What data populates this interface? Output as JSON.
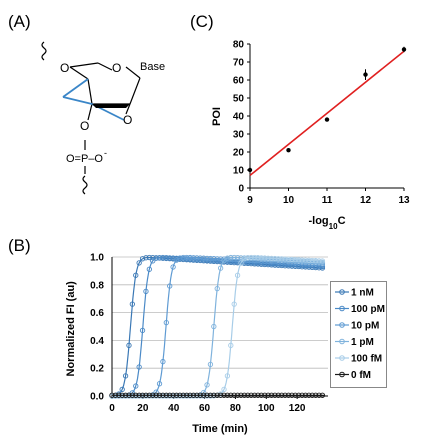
{
  "panels": {
    "a_label": "(A)",
    "b_label": "(B)",
    "c_label": "(C)"
  },
  "structure": {
    "o_top": "O",
    "o_ring": "O",
    "base": "Base",
    "o_right": "O",
    "o_bottom": "O",
    "phosphate": "O=P–O",
    "phosphate_charge": "-"
  },
  "chart_data": [
    {
      "type": "scatter",
      "panel": "C",
      "xlabel_main": "-log",
      "xlabel_sub": "10",
      "xlabel_tail": "C",
      "ylabel": "POI",
      "xlim": [
        9,
        13
      ],
      "ylim": [
        0,
        80
      ],
      "xticks": [
        "9",
        "10",
        "11",
        "12",
        "13"
      ],
      "yticks": [
        "0",
        "10",
        "20",
        "30",
        "40",
        "50",
        "60",
        "70",
        "80"
      ],
      "grid": false,
      "points": [
        {
          "x": 9,
          "y": 10
        },
        {
          "x": 10,
          "y": 21
        },
        {
          "x": 11,
          "y": 38
        },
        {
          "x": 12,
          "y": 63
        },
        {
          "x": 13,
          "y": 77
        }
      ],
      "errors": [
        0.8,
        0.8,
        0.8,
        3,
        1.5
      ],
      "fit_line": {
        "x": [
          9,
          13
        ],
        "y": [
          7,
          76
        ]
      },
      "point_color": "#000000",
      "fit_color": "#e02020"
    },
    {
      "type": "line",
      "panel": "B",
      "xlabel": "Time (min)",
      "ylabel": "Normalized FI (au)",
      "xlim": [
        0,
        140
      ],
      "ylim": [
        0,
        1
      ],
      "xticks": [
        "0",
        "20",
        "40",
        "60",
        "80",
        "100",
        "120"
      ],
      "yticks": [
        "0.0",
        "0.2",
        "0.4",
        "0.6",
        "0.8",
        "1.0"
      ],
      "grid": true,
      "legend_position": "right",
      "series": [
        {
          "name": "1 nM",
          "t50": 12,
          "plateau": 0.92,
          "color": "#3a78b5"
        },
        {
          "name": "100 pM",
          "t50": 20,
          "plateau": 0.93,
          "color": "#4b8ac7"
        },
        {
          "name": "10 pM",
          "t50": 35,
          "plateau": 0.95,
          "color": "#5f9bd3"
        },
        {
          "name": "1 pM",
          "t50": 66,
          "plateau": 0.96,
          "color": "#80b3dd"
        },
        {
          "name": "100 fM",
          "t50": 78,
          "plateau": 0.97,
          "color": "#a8cde8"
        },
        {
          "name": "0 fM",
          "t50": null,
          "plateau": 0.0,
          "color": "#1a1a1a"
        }
      ]
    }
  ]
}
